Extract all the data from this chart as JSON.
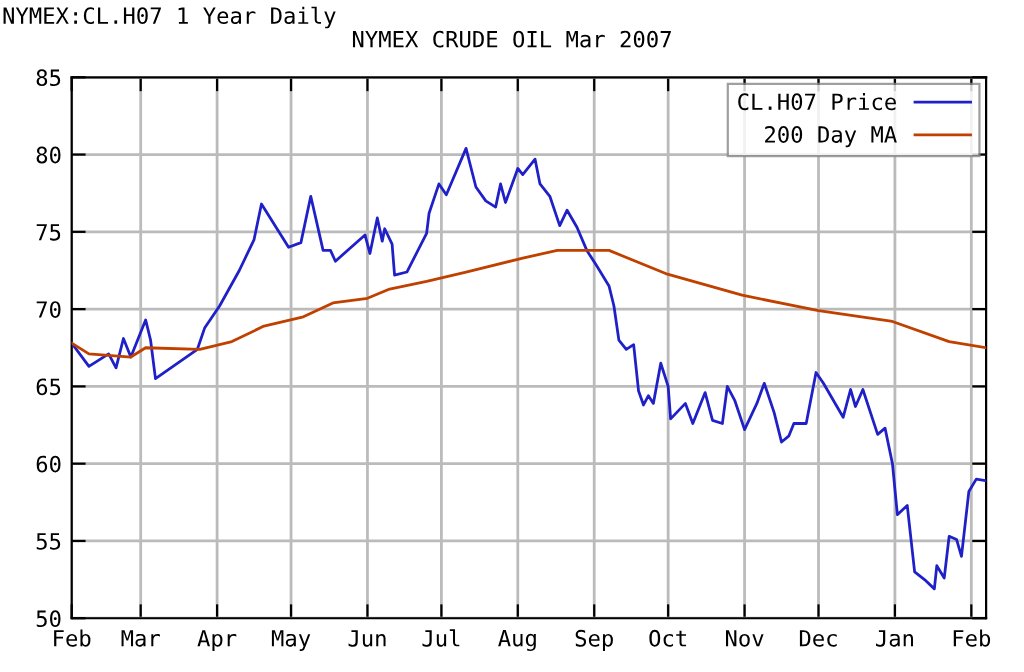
{
  "chart_data": {
    "type": "line",
    "title": "NYMEX CRUDE OIL Mar 2007",
    "annotations": [
      "NYMEX:CL.H07 1 Year Daily"
    ],
    "series": [
      {
        "name": "CL.H07 Price",
        "color": "#2020c8",
        "x": [
          "2006-02-01",
          "2006-02-08",
          "2006-02-16",
          "2006-02-19",
          "2006-02-22",
          "2006-02-25",
          "2006-03-03",
          "2006-03-05",
          "2006-03-07",
          "2006-03-24",
          "2006-03-27",
          "2006-04-02",
          "2006-04-10",
          "2006-04-16",
          "2006-04-19",
          "2006-04-30",
          "2006-05-05",
          "2006-05-09",
          "2006-05-14",
          "2006-05-17",
          "2006-05-19",
          "2006-05-31",
          "2006-06-02",
          "2006-06-05",
          "2006-06-07",
          "2006-06-08",
          "2006-06-11",
          "2006-06-12",
          "2006-06-17",
          "2006-06-25",
          "2006-06-26",
          "2006-06-30",
          "2006-07-03",
          "2006-07-11",
          "2006-07-15",
          "2006-07-19",
          "2006-07-23",
          "2006-07-25",
          "2006-07-27",
          "2006-08-01",
          "2006-08-03",
          "2006-08-08",
          "2006-08-10",
          "2006-08-14",
          "2006-08-18",
          "2006-08-21",
          "2006-08-25",
          "2006-08-29",
          "2006-09-02",
          "2006-09-07",
          "2006-09-09",
          "2006-09-11",
          "2006-09-14",
          "2006-09-17",
          "2006-09-19",
          "2006-09-21",
          "2006-09-23",
          "2006-09-25",
          "2006-09-28",
          "2006-10-01",
          "2006-10-02",
          "2006-10-08",
          "2006-10-11",
          "2006-10-16",
          "2006-10-19",
          "2006-10-23",
          "2006-10-25",
          "2006-10-28",
          "2006-11-01",
          "2006-11-06",
          "2006-11-09",
          "2006-11-13",
          "2006-11-16",
          "2006-11-19",
          "2006-11-21",
          "2006-11-26",
          "2006-11-30",
          "2006-12-03",
          "2006-12-11",
          "2006-12-14",
          "2006-12-16",
          "2006-12-19",
          "2006-12-25",
          "2006-12-28",
          "2006-12-31",
          "2007-01-02",
          "2007-01-06",
          "2007-01-09",
          "2007-01-13",
          "2007-01-17",
          "2007-01-18",
          "2007-01-21",
          "2007-01-23",
          "2007-01-26",
          "2007-01-28",
          "2007-01-31",
          "2007-02-03",
          "2007-02-07"
        ],
        "values": [
          67.8,
          66.3,
          67.1,
          66.2,
          68.1,
          66.9,
          69.3,
          68.0,
          65.5,
          67.4,
          68.8,
          70.2,
          72.5,
          74.5,
          76.8,
          74.0,
          74.3,
          77.3,
          73.8,
          73.8,
          73.1,
          74.8,
          73.6,
          75.9,
          74.4,
          75.2,
          74.2,
          72.2,
          72.4,
          74.9,
          76.2,
          78.1,
          77.4,
          80.4,
          77.9,
          77.0,
          76.6,
          78.1,
          76.9,
          79.1,
          78.7,
          79.7,
          78.1,
          77.3,
          75.4,
          76.4,
          75.3,
          73.8,
          72.8,
          71.5,
          70.2,
          68.0,
          67.4,
          67.7,
          64.7,
          63.8,
          64.4,
          63.9,
          66.5,
          65.0,
          62.9,
          63.9,
          62.6,
          64.6,
          62.8,
          62.6,
          65.0,
          64.1,
          62.2,
          63.9,
          65.2,
          63.3,
          61.4,
          61.8,
          62.6,
          62.6,
          65.9,
          65.2,
          63.0,
          64.8,
          63.7,
          64.8,
          61.9,
          62.3,
          60.0,
          56.7,
          57.3,
          53.0,
          52.5,
          51.9,
          53.4,
          52.6,
          55.3,
          55.1,
          54.0,
          58.2,
          59.0,
          58.9
        ]
      },
      {
        "name": "200 Day MA",
        "color": "#c04000",
        "x": [
          "2006-02-01",
          "2006-02-08",
          "2006-02-25",
          "2006-03-03",
          "2006-03-25",
          "2006-04-07",
          "2006-04-20",
          "2006-05-06",
          "2006-05-18",
          "2006-06-01",
          "2006-06-10",
          "2006-06-25",
          "2006-07-11",
          "2006-08-03",
          "2006-08-17",
          "2006-09-07",
          "2006-09-30",
          "2006-10-31",
          "2006-12-01",
          "2006-12-31",
          "2007-01-23",
          "2007-02-07"
        ],
        "values": [
          67.8,
          67.1,
          66.9,
          67.5,
          67.4,
          67.9,
          68.9,
          69.5,
          70.4,
          70.7,
          71.3,
          71.8,
          72.4,
          73.3,
          73.8,
          73.8,
          72.3,
          70.9,
          69.9,
          69.2,
          67.9,
          67.5
        ]
      }
    ],
    "xlim": [
      "2006-02-01",
      "2007-02-07"
    ],
    "xticks": [
      {
        "value": "2006-02-01",
        "label": "Feb"
      },
      {
        "value": "2006-03-01",
        "label": "Mar"
      },
      {
        "value": "2006-04-01",
        "label": "Apr"
      },
      {
        "value": "2006-05-01",
        "label": "May"
      },
      {
        "value": "2006-06-01",
        "label": "Jun"
      },
      {
        "value": "2006-07-01",
        "label": "Jul"
      },
      {
        "value": "2006-08-01",
        "label": "Aug"
      },
      {
        "value": "2006-09-01",
        "label": "Sep"
      },
      {
        "value": "2006-10-01",
        "label": "Oct"
      },
      {
        "value": "2006-11-01",
        "label": "Nov"
      },
      {
        "value": "2006-12-01",
        "label": "Dec"
      },
      {
        "value": "2007-01-01",
        "label": "Jan"
      },
      {
        "value": "2007-02-01",
        "label": "Feb"
      }
    ],
    "ylim": [
      50,
      85
    ],
    "yticks": [
      50,
      55,
      60,
      65,
      70,
      75,
      80,
      85
    ],
    "grid": true,
    "legend": "top right",
    "line_style": "solid",
    "marker": "none"
  }
}
